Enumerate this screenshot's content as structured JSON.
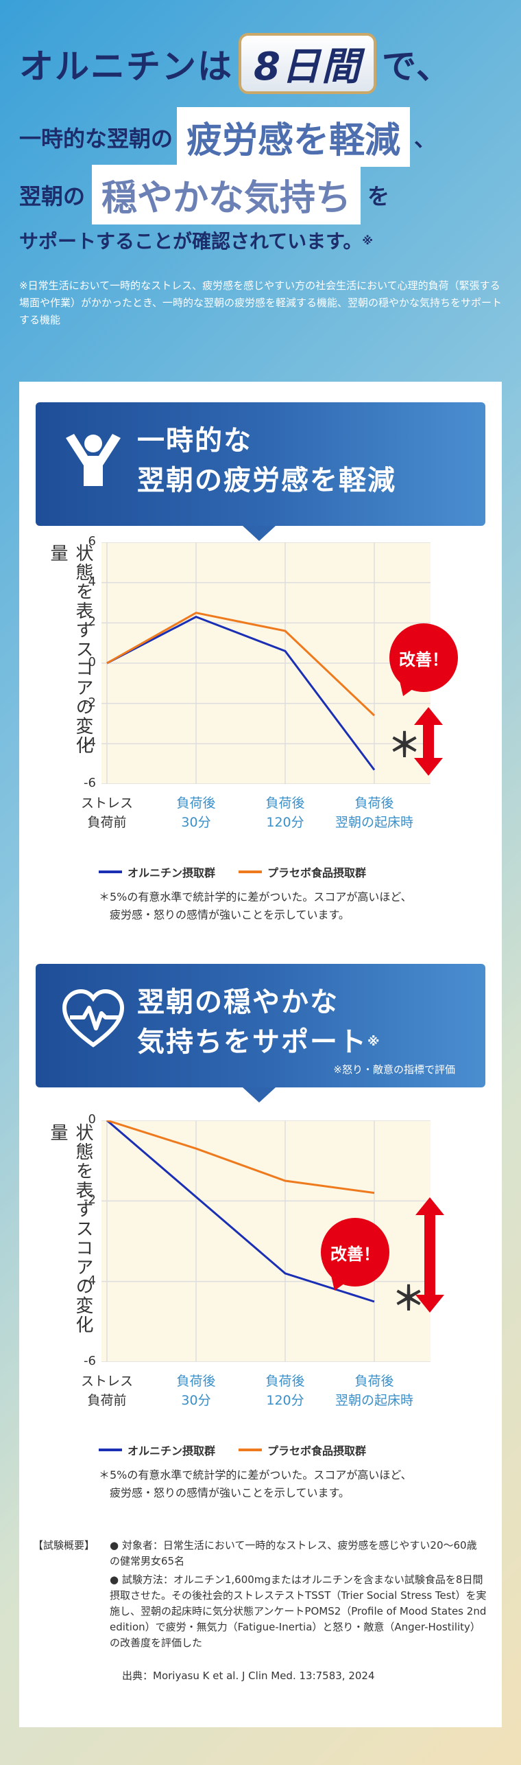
{
  "hero": {
    "line1_pre": "オルニチンは",
    "line1_pill": "8日間",
    "line1_post": "で、",
    "line2_pre": "一時的な翌朝の",
    "line2_box": "疲労感を軽減",
    "line2_post": "、",
    "line3_pre": "翌朝の",
    "line3_box": "穏やかな気持ち",
    "line3_post": "を",
    "line4": "サポートすることが確認されています。",
    "line4_mark": "※",
    "note": "※日常生活において一時的なストレス、疲労感を感じやすい方の社会生活において心理的負荷（緊張する場面や作業）がかかったとき、一時的な翌朝の疲労感を軽減する機能、翌朝の穏やかな気持ちをサポートする機能"
  },
  "section1": {
    "title_l1": "一時的な",
    "title_l2": "翌朝の疲労感を軽減",
    "icon": "person-raising-arms-icon",
    "ylabel": "状態を表すスコアの変化量",
    "badge": "改善！",
    "star": "＊",
    "legend_a": "オルニチン摂取群",
    "legend_b": "プラセボ食品摂取群",
    "foot_l1": "＊5%の有意水準で統計学的に差がついた。スコアが高いほど、",
    "foot_l2": "疲労感・怒りの感情が強いことを示しています。"
  },
  "section2": {
    "title_l1": "翌朝の穏やかな",
    "title_l2": "気持ちをサポート",
    "title_mark": "※",
    "subnote": "※怒り・敵意の指標で評価",
    "icon": "heart-pulse-icon",
    "ylabel": "状態を表すスコアの変化量",
    "badge": "改善！",
    "star": "＊",
    "legend_a": "オルニチン摂取群",
    "legend_b": "プラセボ食品摂取群",
    "foot_l1": "＊5%の有意水準で統計学的に差がついた。スコアが高いほど、",
    "foot_l2": "疲労感・怒りの感情が強いことを示しています。"
  },
  "study": {
    "label": "【試験概要】",
    "bullet1": "● 対象者：日常生活において一時的なストレス、疲労感を感じやすい20～60歳の健常男女65名",
    "bullet2": "● 試験方法：オルニチン1,600mgまたはオルニチンを含まない試験食品を8日間摂取させた。その後社会的ストレステストTSST（Trier Social Stress Test）を実施し、翌朝の起床時に気分状態アンケートPOMS2（Profile of Mood States 2nd edition）で疲労・無気力（Fatigue-Inertia）と怒り・敵意（Anger-Hostility）の改善度を評価した",
    "source": "出典：Moriyasu K et al. J Clin Med. 13:7583, 2024"
  },
  "colors": {
    "ornithine": "#1a2fb4",
    "placebo": "#ee7a1d",
    "accent": "#e60013"
  },
  "chart_data": [
    {
      "type": "line",
      "categories": [
        "ストレス\n負荷前",
        "負荷後\n30分",
        "負荷後\n120分",
        "負荷後\n翌朝の起床時"
      ],
      "series": [
        {
          "name": "オルニチン摂取群",
          "values": [
            0,
            2.3,
            0.6,
            -5.3
          ]
        },
        {
          "name": "プラセボ食品摂取群",
          "values": [
            0,
            2.5,
            1.6,
            -2.6
          ]
        }
      ],
      "ylabel": "状態を表すスコアの変化量",
      "ylim": [
        -6,
        6
      ],
      "yticks": [
        -6,
        -4,
        -2,
        0,
        2,
        4,
        6
      ],
      "grid": true
    },
    {
      "type": "line",
      "categories": [
        "ストレス\n負荷前",
        "負荷後\n30分",
        "負荷後\n120分",
        "負荷後\n翌朝の起床時"
      ],
      "series": [
        {
          "name": "オルニチン摂取群",
          "values": [
            0,
            -1.9,
            -3.8,
            -4.5
          ]
        },
        {
          "name": "プラセボ食品摂取群",
          "values": [
            0,
            -0.7,
            -1.5,
            -1.8
          ]
        }
      ],
      "ylabel": "状態を表すスコアの変化量",
      "ylim": [
        -6,
        0
      ],
      "yticks": [
        -6,
        -4,
        -2,
        0
      ],
      "grid": true
    }
  ]
}
